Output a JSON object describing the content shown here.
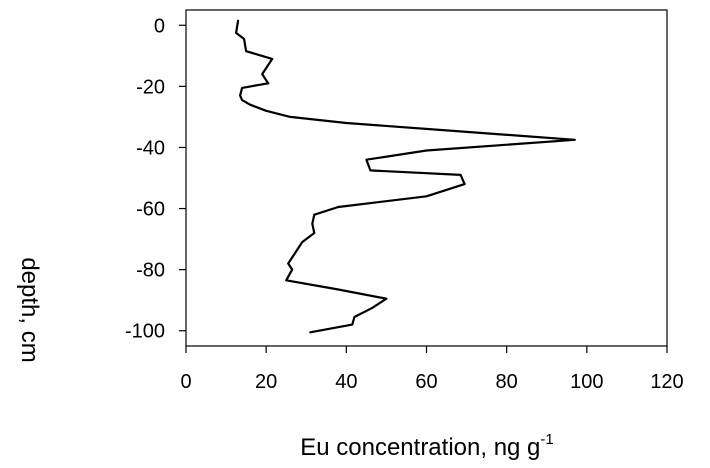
{
  "chart_data": {
    "type": "line",
    "title": "",
    "xlabel": "Eu concentration, ng g",
    "xlabel_superscript": "-1",
    "ylabel": "depth, cm",
    "xlim": [
      0,
      120
    ],
    "ylim": [
      -105,
      5
    ],
    "xticks": [
      0,
      20,
      40,
      60,
      80,
      100,
      120
    ],
    "yticks": [
      0,
      -20,
      -40,
      -60,
      -80,
      -100
    ],
    "grid": false,
    "legend": "none",
    "line_color": "#000000",
    "series": [
      {
        "x": [
          13.0,
          12.5,
          14.5,
          15.0,
          21.5,
          19.0,
          20.5,
          14.0,
          13.5,
          14.0,
          16.0,
          20.0,
          26.0,
          40.0,
          97.0,
          60.0,
          45.0,
          46.0,
          68.5,
          69.5,
          60.0,
          38.0,
          32.0,
          31.5,
          32.0,
          29.0,
          27.0,
          25.5,
          26.5,
          25.0,
          38.0,
          50.0,
          46.5,
          42.0,
          41.5,
          31.0
        ],
        "y": [
          1.5,
          -2.5,
          -4.5,
          -8.5,
          -11.0,
          -16.0,
          -19.0,
          -20.5,
          -23.0,
          -24.5,
          -26.0,
          -28.0,
          -30.0,
          -32.0,
          -37.5,
          -41.0,
          -44.0,
          -47.5,
          -49.0,
          -52.0,
          -56.0,
          -59.5,
          -62.0,
          -65.0,
          -68.0,
          -71.0,
          -75.0,
          -78.0,
          -80.0,
          -83.5,
          -86.5,
          -89.5,
          -92.5,
          -95.5,
          -98.0,
          -100.5
        ]
      }
    ]
  }
}
